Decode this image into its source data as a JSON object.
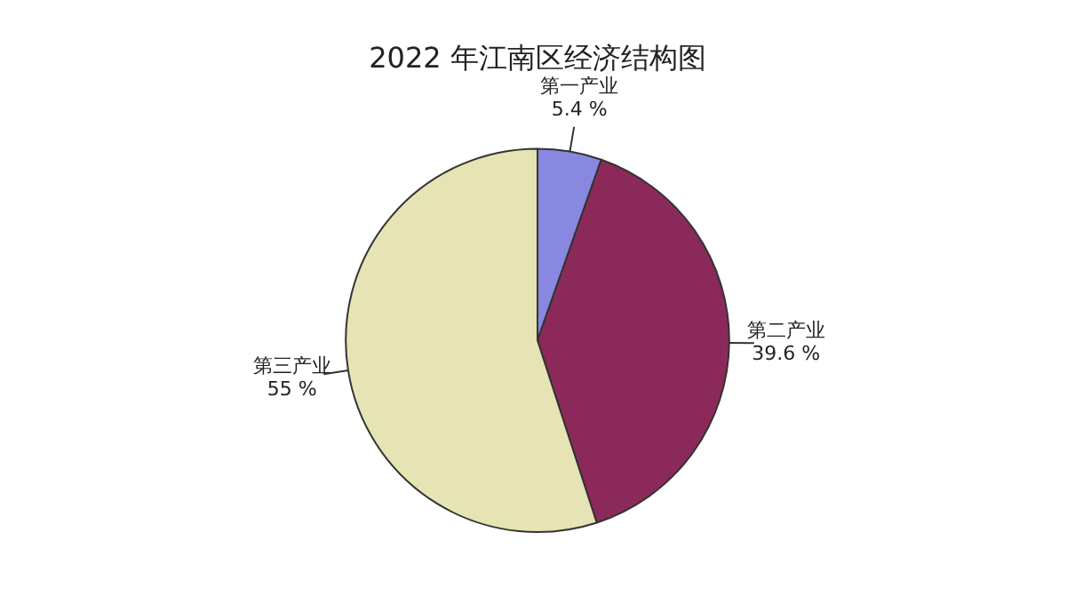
{
  "chart_data": {
    "type": "pie",
    "title": "2022 年江南区经济结构图",
    "categories": [
      "第一产业",
      "第二产业",
      "第三产业"
    ],
    "values": [
      5.4,
      39.6,
      55
    ],
    "colors": [
      "#8888e0",
      "#8b2a5a",
      "#e6e3b4"
    ],
    "value_labels": [
      "5.4 %",
      "39.6 %",
      "55 %"
    ],
    "legend": false
  }
}
